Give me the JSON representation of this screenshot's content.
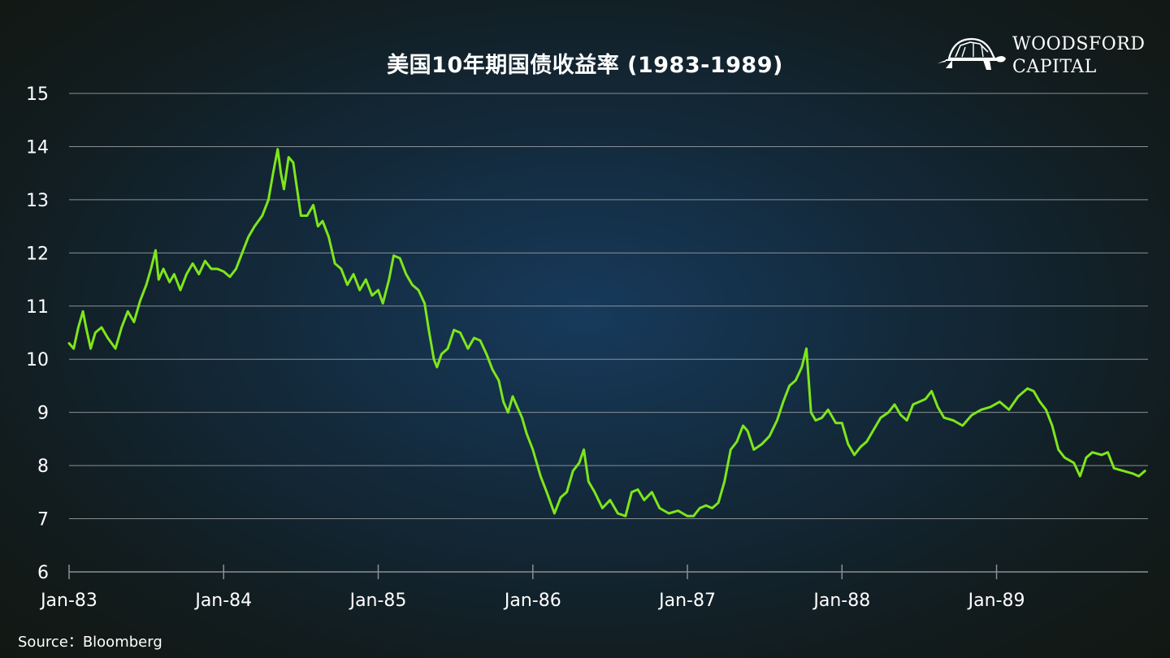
{
  "title": "美国10年期国债收益率 (1983-1989)",
  "source": "Source：Bloomberg",
  "logo": {
    "line1": "WOODSFORD",
    "line2": "CAPITAL",
    "icon": "turtle-icon"
  },
  "colors": {
    "line": "#7ee61b",
    "grid": "#8a8f94",
    "text": "#ffffff"
  },
  "chart_data": {
    "type": "line",
    "title": "美国10年期国债收益率 (1983-1989)",
    "xlabel": "",
    "ylabel": "",
    "ylim": [
      6,
      15
    ],
    "xlim": [
      1983.0,
      1989.98
    ],
    "y_ticks": [
      "6",
      "7",
      "8",
      "9",
      "10",
      "11",
      "12",
      "13",
      "14",
      "15"
    ],
    "x_ticks": [
      {
        "label": "Jan-83",
        "x": 1983.0
      },
      {
        "label": "Jan-84",
        "x": 1984.0
      },
      {
        "label": "Jan-85",
        "x": 1985.0
      },
      {
        "label": "Jan-86",
        "x": 1986.0
      },
      {
        "label": "Jan-87",
        "x": 1987.0
      },
      {
        "label": "Jan-88",
        "x": 1988.0
      },
      {
        "label": "Jan-89",
        "x": 1989.0
      }
    ],
    "grid": true,
    "series": [
      {
        "points": [
          [
            1983.0,
            10.3
          ],
          [
            1983.03,
            10.2
          ],
          [
            1983.06,
            10.6
          ],
          [
            1983.09,
            10.9
          ],
          [
            1983.11,
            10.6
          ],
          [
            1983.14,
            10.2
          ],
          [
            1983.17,
            10.5
          ],
          [
            1983.21,
            10.6
          ],
          [
            1983.25,
            10.4
          ],
          [
            1983.3,
            10.2
          ],
          [
            1983.34,
            10.6
          ],
          [
            1983.38,
            10.9
          ],
          [
            1983.42,
            10.7
          ],
          [
            1983.46,
            11.1
          ],
          [
            1983.5,
            11.4
          ],
          [
            1983.53,
            11.7
          ],
          [
            1983.56,
            12.05
          ],
          [
            1983.58,
            11.5
          ],
          [
            1983.61,
            11.7
          ],
          [
            1983.65,
            11.45
          ],
          [
            1983.68,
            11.6
          ],
          [
            1983.72,
            11.3
          ],
          [
            1983.76,
            11.6
          ],
          [
            1983.8,
            11.8
          ],
          [
            1983.84,
            11.6
          ],
          [
            1983.88,
            11.85
          ],
          [
            1983.92,
            11.7
          ],
          [
            1983.96,
            11.7
          ],
          [
            1984.0,
            11.65
          ],
          [
            1984.04,
            11.55
          ],
          [
            1984.08,
            11.7
          ],
          [
            1984.12,
            12.0
          ],
          [
            1984.16,
            12.3
          ],
          [
            1984.2,
            12.5
          ],
          [
            1984.25,
            12.7
          ],
          [
            1984.29,
            13.0
          ],
          [
            1984.32,
            13.5
          ],
          [
            1984.35,
            13.95
          ],
          [
            1984.37,
            13.5
          ],
          [
            1984.39,
            13.2
          ],
          [
            1984.42,
            13.8
          ],
          [
            1984.45,
            13.7
          ],
          [
            1984.48,
            13.1
          ],
          [
            1984.5,
            12.7
          ],
          [
            1984.54,
            12.7
          ],
          [
            1984.58,
            12.9
          ],
          [
            1984.61,
            12.5
          ],
          [
            1984.64,
            12.6
          ],
          [
            1984.68,
            12.3
          ],
          [
            1984.72,
            11.8
          ],
          [
            1984.76,
            11.7
          ],
          [
            1984.8,
            11.4
          ],
          [
            1984.84,
            11.6
          ],
          [
            1984.88,
            11.3
          ],
          [
            1984.92,
            11.5
          ],
          [
            1984.96,
            11.2
          ],
          [
            1985.0,
            11.3
          ],
          [
            1985.03,
            11.05
          ],
          [
            1985.07,
            11.5
          ],
          [
            1985.1,
            11.95
          ],
          [
            1985.14,
            11.9
          ],
          [
            1985.18,
            11.6
          ],
          [
            1985.22,
            11.4
          ],
          [
            1985.26,
            11.3
          ],
          [
            1985.3,
            11.05
          ],
          [
            1985.33,
            10.5
          ],
          [
            1985.36,
            10.0
          ],
          [
            1985.38,
            9.85
          ],
          [
            1985.41,
            10.1
          ],
          [
            1985.45,
            10.2
          ],
          [
            1985.49,
            10.55
          ],
          [
            1985.53,
            10.5
          ],
          [
            1985.58,
            10.2
          ],
          [
            1985.62,
            10.4
          ],
          [
            1985.66,
            10.35
          ],
          [
            1985.7,
            10.1
          ],
          [
            1985.74,
            9.8
          ],
          [
            1985.78,
            9.6
          ],
          [
            1985.81,
            9.2
          ],
          [
            1985.84,
            9.0
          ],
          [
            1985.87,
            9.3
          ],
          [
            1985.9,
            9.1
          ],
          [
            1985.93,
            8.9
          ],
          [
            1985.96,
            8.6
          ],
          [
            1986.0,
            8.3
          ],
          [
            1986.05,
            7.8
          ],
          [
            1986.09,
            7.5
          ],
          [
            1986.14,
            7.1
          ],
          [
            1986.18,
            7.4
          ],
          [
            1986.22,
            7.5
          ],
          [
            1986.26,
            7.9
          ],
          [
            1986.3,
            8.05
          ],
          [
            1986.33,
            8.3
          ],
          [
            1986.36,
            7.7
          ],
          [
            1986.4,
            7.5
          ],
          [
            1986.45,
            7.2
          ],
          [
            1986.5,
            7.35
          ],
          [
            1986.55,
            7.1
          ],
          [
            1986.6,
            7.05
          ],
          [
            1986.64,
            7.5
          ],
          [
            1986.68,
            7.55
          ],
          [
            1986.72,
            7.35
          ],
          [
            1986.77,
            7.5
          ],
          [
            1986.82,
            7.2
          ],
          [
            1986.88,
            7.1
          ],
          [
            1986.94,
            7.15
          ],
          [
            1987.0,
            7.05
          ],
          [
            1987.04,
            7.05
          ],
          [
            1987.08,
            7.2
          ],
          [
            1987.12,
            7.25
          ],
          [
            1987.16,
            7.2
          ],
          [
            1987.2,
            7.3
          ],
          [
            1987.24,
            7.7
          ],
          [
            1987.28,
            8.3
          ],
          [
            1987.32,
            8.45
          ],
          [
            1987.36,
            8.75
          ],
          [
            1987.39,
            8.65
          ],
          [
            1987.43,
            8.3
          ],
          [
            1987.48,
            8.4
          ],
          [
            1987.53,
            8.55
          ],
          [
            1987.58,
            8.85
          ],
          [
            1987.62,
            9.2
          ],
          [
            1987.66,
            9.5
          ],
          [
            1987.7,
            9.6
          ],
          [
            1987.74,
            9.85
          ],
          [
            1987.77,
            10.2
          ],
          [
            1987.8,
            9.0
          ],
          [
            1987.83,
            8.85
          ],
          [
            1987.87,
            8.9
          ],
          [
            1987.91,
            9.05
          ],
          [
            1987.96,
            8.8
          ],
          [
            1988.0,
            8.8
          ],
          [
            1988.04,
            8.4
          ],
          [
            1988.08,
            8.2
          ],
          [
            1988.12,
            8.35
          ],
          [
            1988.16,
            8.45
          ],
          [
            1988.2,
            8.65
          ],
          [
            1988.25,
            8.9
          ],
          [
            1988.3,
            9.0
          ],
          [
            1988.34,
            9.15
          ],
          [
            1988.38,
            8.95
          ],
          [
            1988.42,
            8.85
          ],
          [
            1988.46,
            9.15
          ],
          [
            1988.5,
            9.2
          ],
          [
            1988.54,
            9.25
          ],
          [
            1988.58,
            9.4
          ],
          [
            1988.62,
            9.1
          ],
          [
            1988.66,
            8.9
          ],
          [
            1988.72,
            8.85
          ],
          [
            1988.78,
            8.75
          ],
          [
            1988.84,
            8.95
          ],
          [
            1988.9,
            9.05
          ],
          [
            1988.96,
            9.1
          ],
          [
            1989.02,
            9.2
          ],
          [
            1989.08,
            9.05
          ],
          [
            1989.14,
            9.3
          ],
          [
            1989.2,
            9.45
          ],
          [
            1989.24,
            9.4
          ],
          [
            1989.28,
            9.2
          ],
          [
            1989.32,
            9.05
          ],
          [
            1989.36,
            8.75
          ],
          [
            1989.4,
            8.3
          ],
          [
            1989.44,
            8.15
          ],
          [
            1989.5,
            8.05
          ],
          [
            1989.54,
            7.8
          ],
          [
            1989.58,
            8.15
          ],
          [
            1989.62,
            8.25
          ],
          [
            1989.68,
            8.2
          ],
          [
            1989.72,
            8.25
          ],
          [
            1989.76,
            7.95
          ],
          [
            1989.82,
            7.9
          ],
          [
            1989.88,
            7.85
          ],
          [
            1989.92,
            7.8
          ],
          [
            1989.96,
            7.9
          ]
        ]
      }
    ]
  }
}
